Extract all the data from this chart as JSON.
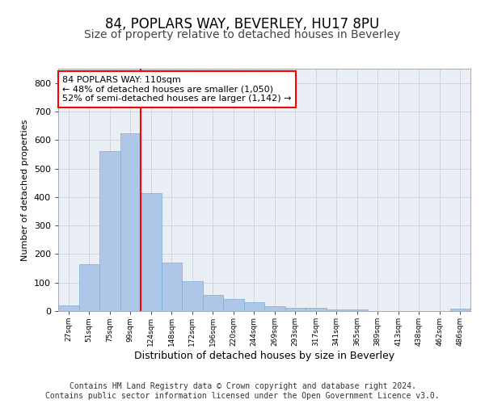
{
  "title1": "84, POPLARS WAY, BEVERLEY, HU17 8PU",
  "title2": "Size of property relative to detached houses in Beverley",
  "xlabel": "Distribution of detached houses by size in Beverley",
  "ylabel": "Number of detached properties",
  "bar_values": [
    20,
    163,
    562,
    622,
    413,
    170,
    105,
    57,
    43,
    30,
    17,
    10,
    10,
    5,
    5,
    0,
    0,
    0,
    0,
    8
  ],
  "categories": [
    "27sqm",
    "51sqm",
    "75sqm",
    "99sqm",
    "124sqm",
    "148sqm",
    "172sqm",
    "196sqm",
    "220sqm",
    "244sqm",
    "269sqm",
    "293sqm",
    "317sqm",
    "341sqm",
    "365sqm",
    "389sqm",
    "413sqm",
    "438sqm",
    "462sqm",
    "486sqm"
  ],
  "bar_color": "#aec6e8",
  "bar_edge_color": "#7aaed6",
  "vline_x": 3.5,
  "vline_color": "red",
  "annotation_text": "84 POPLARS WAY: 110sqm\n← 48% of detached houses are smaller (1,050)\n52% of semi-detached houses are larger (1,142) →",
  "annotation_box_color": "white",
  "annotation_box_edgecolor": "red",
  "grid_color": "#cdd5e0",
  "plot_bg_color": "#eaeff5",
  "ylim": [
    0,
    850
  ],
  "footer": "Contains HM Land Registry data © Crown copyright and database right 2024.\nContains public sector information licensed under the Open Government Licence v3.0.",
  "title1_fontsize": 12,
  "title2_fontsize": 10,
  "annotation_fontsize": 8.0,
  "footer_fontsize": 7.0
}
